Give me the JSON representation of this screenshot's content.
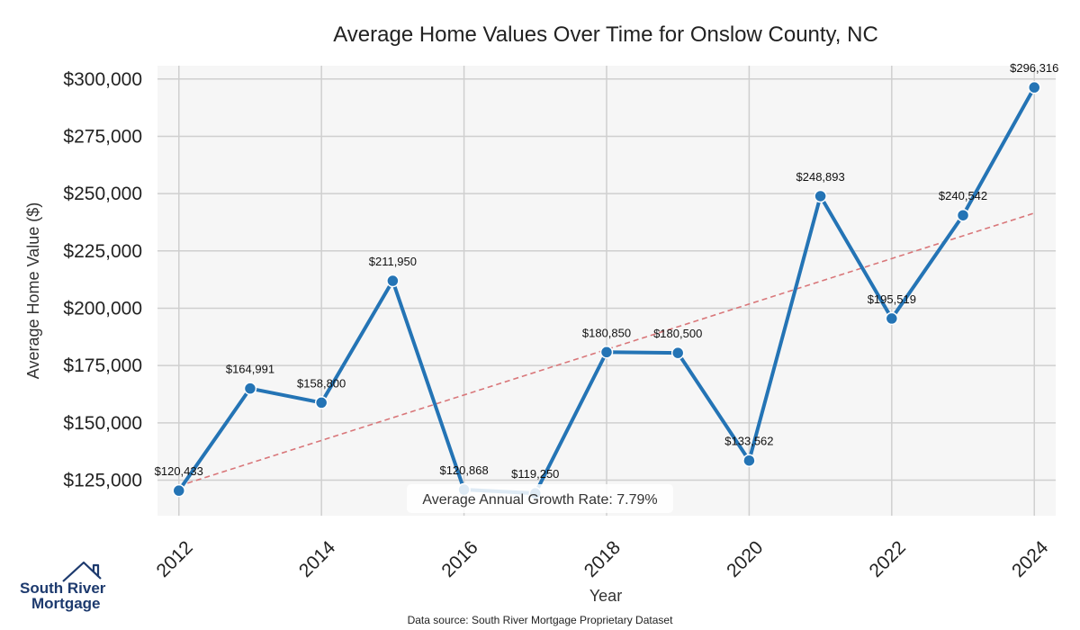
{
  "chart_data": {
    "type": "line",
    "title": "Average Home Values Over Time for Onslow County, NC",
    "xlabel": "Year",
    "ylabel": "Average Home Value ($)",
    "x": [
      2012,
      2013,
      2014,
      2015,
      2016,
      2017,
      2018,
      2019,
      2020,
      2021,
      2022,
      2023,
      2024
    ],
    "series": [
      {
        "values": [
          120433,
          164991,
          158800,
          211950,
          120868,
          119250,
          180850,
          180500,
          133562,
          248893,
          195519,
          240542,
          296316
        ],
        "labels": [
          "$120,433",
          "$164,991",
          "$158,800",
          "$211,950",
          "$120,868",
          "$119,250",
          "$180,850",
          "$180,500",
          "$133,562",
          "$248,893",
          "$195,519",
          "$240,542",
          "$296,316"
        ],
        "color": "#2474b5"
      }
    ],
    "trend": {
      "start": 122500,
      "end": 241500,
      "color": "#d9777a",
      "style": "dashed"
    },
    "xticks": [
      "2012",
      "2014",
      "2016",
      "2018",
      "2020",
      "2022",
      "2024"
    ],
    "yticks": [
      "$125,000",
      "$150,000",
      "$175,000",
      "$200,000",
      "$225,000",
      "$250,000",
      "$275,000",
      "$300,000"
    ],
    "ytick_values": [
      125000,
      150000,
      175000,
      200000,
      225000,
      250000,
      275000,
      300000
    ],
    "xlim": [
      2011.7,
      2024.3
    ],
    "ylim": [
      109500,
      305800
    ],
    "grid": true,
    "plot_background": "#f6f6f6",
    "annotation": "Average Annual Growth Rate: 7.79%"
  },
  "source_text": "Data source: South River Mortgage Proprietary Dataset",
  "logo": {
    "line1": "South River",
    "line2": "Mortgage",
    "color": "#1d3a6e"
  }
}
